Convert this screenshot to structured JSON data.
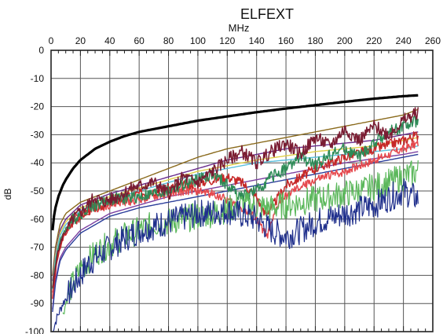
{
  "chart_data": {
    "type": "line",
    "title": "ELFEXT",
    "xlabel": "MHz",
    "ylabel": "dB",
    "xlim": [
      0,
      260
    ],
    "ylim": [
      -100,
      0
    ],
    "x_ticks": [
      "0",
      "20",
      "40",
      "60",
      "80",
      "100",
      "120",
      "140",
      "160",
      "180",
      "200",
      "220",
      "240",
      "260"
    ],
    "y_ticks": [
      "0",
      "-10",
      "-20",
      "-30",
      "-40",
      "-50",
      "-60",
      "-70",
      "-80",
      "-90",
      "-100"
    ],
    "x_axis_position": "top",
    "grid": true,
    "legend": "none",
    "series": [
      {
        "color": "#000000",
        "style": "smooth",
        "stroke": 3.2,
        "points": [
          [
            1,
            -64
          ],
          [
            2,
            -59
          ],
          [
            3,
            -56
          ],
          [
            5,
            -52
          ],
          [
            8,
            -48
          ],
          [
            10,
            -46
          ],
          [
            15,
            -42
          ],
          [
            20,
            -39
          ],
          [
            30,
            -35
          ],
          [
            40,
            -32.5
          ],
          [
            50,
            -30.5
          ],
          [
            60,
            -29
          ],
          [
            80,
            -27
          ],
          [
            100,
            -25
          ],
          [
            120,
            -23.5
          ],
          [
            140,
            -22
          ],
          [
            160,
            -20.7
          ],
          [
            180,
            -19.5
          ],
          [
            200,
            -18.3
          ],
          [
            220,
            -17.2
          ],
          [
            240,
            -16.3
          ],
          [
            250,
            -16
          ]
        ]
      },
      {
        "color": "#8a6a1c",
        "style": "smooth",
        "stroke": 1.4,
        "points": [
          [
            1,
            -80
          ],
          [
            3,
            -70
          ],
          [
            6,
            -62
          ],
          [
            10,
            -58
          ],
          [
            20,
            -54
          ],
          [
            30,
            -52
          ],
          [
            40,
            -50
          ],
          [
            60,
            -46
          ],
          [
            80,
            -42
          ],
          [
            100,
            -38
          ],
          [
            120,
            -35
          ],
          [
            140,
            -33
          ],
          [
            160,
            -31
          ],
          [
            180,
            -29
          ],
          [
            200,
            -27
          ],
          [
            220,
            -25
          ],
          [
            240,
            -23
          ],
          [
            250,
            -21
          ]
        ]
      },
      {
        "color": "#6a2d8c",
        "style": "smooth",
        "stroke": 1.4,
        "points": [
          [
            1,
            -82
          ],
          [
            3,
            -72
          ],
          [
            6,
            -64
          ],
          [
            10,
            -60
          ],
          [
            20,
            -55
          ],
          [
            40,
            -51
          ],
          [
            60,
            -48
          ],
          [
            80,
            -45
          ],
          [
            100,
            -42
          ],
          [
            120,
            -39
          ],
          [
            140,
            -37
          ],
          [
            160,
            -35
          ],
          [
            180,
            -34
          ],
          [
            200,
            -33
          ],
          [
            220,
            -32
          ],
          [
            240,
            -30
          ],
          [
            250,
            -29
          ]
        ]
      },
      {
        "color": "#e0d04a",
        "style": "smooth",
        "stroke": 1.4,
        "points": [
          [
            1,
            -84
          ],
          [
            3,
            -73
          ],
          [
            6,
            -65
          ],
          [
            10,
            -61
          ],
          [
            20,
            -56
          ],
          [
            40,
            -52
          ],
          [
            60,
            -49
          ],
          [
            80,
            -46
          ],
          [
            100,
            -43
          ],
          [
            120,
            -41
          ],
          [
            140,
            -39
          ],
          [
            160,
            -37.5
          ],
          [
            180,
            -36
          ],
          [
            200,
            -35
          ],
          [
            220,
            -34
          ],
          [
            240,
            -32
          ],
          [
            250,
            -31
          ]
        ]
      },
      {
        "color": "#5bc0de",
        "style": "smooth",
        "stroke": 1.4,
        "points": [
          [
            1,
            -85
          ],
          [
            3,
            -74
          ],
          [
            6,
            -66
          ],
          [
            10,
            -62
          ],
          [
            20,
            -57
          ],
          [
            40,
            -53
          ],
          [
            60,
            -50
          ],
          [
            80,
            -47
          ],
          [
            100,
            -44
          ],
          [
            120,
            -42
          ],
          [
            140,
            -40
          ],
          [
            160,
            -39
          ],
          [
            180,
            -38
          ],
          [
            200,
            -37
          ],
          [
            220,
            -36
          ],
          [
            240,
            -35
          ],
          [
            250,
            -34
          ]
        ]
      },
      {
        "color": "#7b3fa0",
        "style": "smooth",
        "stroke": 1.4,
        "points": [
          [
            1,
            -92
          ],
          [
            3,
            -82
          ],
          [
            6,
            -74
          ],
          [
            10,
            -70
          ],
          [
            20,
            -64
          ],
          [
            40,
            -58
          ],
          [
            60,
            -55
          ],
          [
            80,
            -52
          ],
          [
            100,
            -50
          ],
          [
            120,
            -48
          ],
          [
            140,
            -46
          ],
          [
            160,
            -44
          ],
          [
            180,
            -42
          ],
          [
            200,
            -40
          ],
          [
            220,
            -38.5
          ],
          [
            240,
            -37
          ],
          [
            250,
            -36
          ]
        ]
      },
      {
        "color": "#2b3d9a",
        "style": "smooth",
        "stroke": 1.4,
        "points": [
          [
            1,
            -93
          ],
          [
            3,
            -83
          ],
          [
            6,
            -75
          ],
          [
            10,
            -71
          ],
          [
            20,
            -65
          ],
          [
            40,
            -59
          ],
          [
            60,
            -56
          ],
          [
            80,
            -54
          ],
          [
            100,
            -52
          ],
          [
            120,
            -50
          ],
          [
            140,
            -48
          ],
          [
            160,
            -46
          ],
          [
            180,
            -44
          ],
          [
            200,
            -42
          ],
          [
            220,
            -40
          ],
          [
            240,
            -38
          ],
          [
            250,
            -37
          ]
        ]
      },
      {
        "color": "#e5484d",
        "style": "noisy",
        "stroke": 1.5,
        "amp": 1.5,
        "seed": 2,
        "points": [
          [
            1,
            -86
          ],
          [
            4,
            -74
          ],
          [
            8,
            -66
          ],
          [
            15,
            -60
          ],
          [
            25,
            -57
          ],
          [
            40,
            -55
          ],
          [
            60,
            -53
          ],
          [
            80,
            -51
          ],
          [
            90,
            -50
          ],
          [
            100,
            -50
          ],
          [
            110,
            -51
          ],
          [
            120,
            -53
          ],
          [
            130,
            -56
          ],
          [
            140,
            -60
          ],
          [
            147,
            -66
          ],
          [
            150,
            -62
          ],
          [
            155,
            -54
          ],
          [
            165,
            -50
          ],
          [
            180,
            -46
          ],
          [
            200,
            -43
          ],
          [
            220,
            -39
          ],
          [
            240,
            -35
          ],
          [
            250,
            -33
          ]
        ]
      },
      {
        "color": "#c62828",
        "style": "noisy",
        "stroke": 1.5,
        "amp": 1.8,
        "seed": 3,
        "points": [
          [
            1,
            -88
          ],
          [
            4,
            -75
          ],
          [
            8,
            -67
          ],
          [
            15,
            -61
          ],
          [
            25,
            -57
          ],
          [
            40,
            -54
          ],
          [
            60,
            -51
          ],
          [
            80,
            -49
          ],
          [
            100,
            -47
          ],
          [
            120,
            -45
          ],
          [
            130,
            -47
          ],
          [
            140,
            -52
          ],
          [
            145,
            -58
          ],
          [
            150,
            -56
          ],
          [
            160,
            -48
          ],
          [
            180,
            -42
          ],
          [
            200,
            -38
          ],
          [
            220,
            -35
          ],
          [
            240,
            -32
          ],
          [
            250,
            -30
          ]
        ]
      },
      {
        "color": "#2e8b57",
        "style": "noisy",
        "stroke": 1.5,
        "amp": 2.2,
        "seed": 4,
        "points": [
          [
            1,
            -84
          ],
          [
            4,
            -72
          ],
          [
            8,
            -65
          ],
          [
            15,
            -60
          ],
          [
            25,
            -56
          ],
          [
            40,
            -53
          ],
          [
            60,
            -52
          ],
          [
            80,
            -50
          ],
          [
            100,
            -46
          ],
          [
            110,
            -44
          ],
          [
            120,
            -48
          ],
          [
            130,
            -52
          ],
          [
            140,
            -50
          ],
          [
            150,
            -45
          ],
          [
            160,
            -42
          ],
          [
            170,
            -38
          ],
          [
            180,
            -41
          ],
          [
            190,
            -37
          ],
          [
            200,
            -35
          ],
          [
            210,
            -38
          ],
          [
            220,
            -33
          ],
          [
            230,
            -29
          ],
          [
            240,
            -27
          ],
          [
            250,
            -25
          ]
        ]
      },
      {
        "color": "#7a1c32",
        "style": "noisy",
        "stroke": 1.5,
        "amp": 2.4,
        "seed": 5,
        "points": [
          [
            1,
            -85
          ],
          [
            4,
            -73
          ],
          [
            8,
            -66
          ],
          [
            15,
            -60
          ],
          [
            25,
            -55
          ],
          [
            30,
            -52
          ],
          [
            35,
            -54
          ],
          [
            45,
            -52
          ],
          [
            55,
            -49
          ],
          [
            70,
            -47
          ],
          [
            80,
            -51
          ],
          [
            90,
            -45
          ],
          [
            100,
            -47
          ],
          [
            110,
            -43
          ],
          [
            120,
            -39
          ],
          [
            130,
            -36
          ],
          [
            140,
            -40
          ],
          [
            150,
            -36
          ],
          [
            160,
            -33
          ],
          [
            170,
            -37
          ],
          [
            180,
            -31
          ],
          [
            190,
            -34
          ],
          [
            200,
            -28
          ],
          [
            210,
            -32
          ],
          [
            220,
            -27
          ],
          [
            230,
            -30
          ],
          [
            240,
            -25
          ],
          [
            250,
            -22
          ]
        ]
      },
      {
        "color": "#5cb85c",
        "style": "noisy",
        "stroke": 1.2,
        "amp": 5,
        "seed": 6,
        "points": [
          [
            8,
            -94
          ],
          [
            12,
            -86
          ],
          [
            20,
            -78
          ],
          [
            30,
            -72
          ],
          [
            50,
            -66
          ],
          [
            70,
            -62
          ],
          [
            90,
            -60
          ],
          [
            110,
            -58
          ],
          [
            130,
            -55
          ],
          [
            150,
            -56
          ],
          [
            170,
            -54
          ],
          [
            190,
            -52
          ],
          [
            210,
            -50
          ],
          [
            230,
            -47
          ],
          [
            250,
            -43
          ]
        ]
      },
      {
        "color": "#1f2f8c",
        "style": "noisy",
        "stroke": 1.2,
        "amp": 5,
        "seed": 7,
        "points": [
          [
            1,
            -100
          ],
          [
            4,
            -95
          ],
          [
            8,
            -90
          ],
          [
            15,
            -84
          ],
          [
            25,
            -76
          ],
          [
            40,
            -70
          ],
          [
            60,
            -64
          ],
          [
            80,
            -61
          ],
          [
            100,
            -58
          ],
          [
            120,
            -57
          ],
          [
            140,
            -60
          ],
          [
            150,
            -64
          ],
          [
            160,
            -66
          ],
          [
            170,
            -64
          ],
          [
            180,
            -61
          ],
          [
            200,
            -58
          ],
          [
            220,
            -55
          ],
          [
            240,
            -50
          ],
          [
            250,
            -53
          ]
        ]
      }
    ]
  }
}
